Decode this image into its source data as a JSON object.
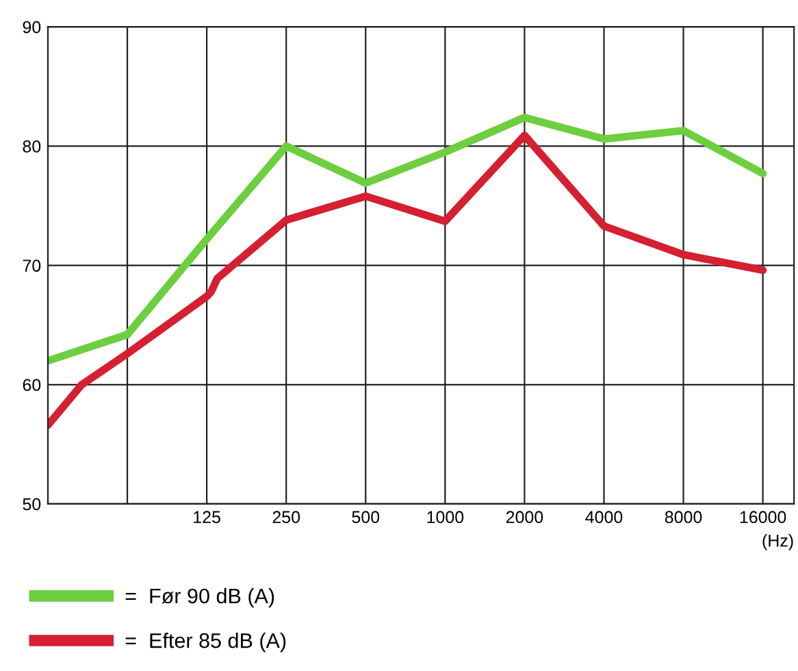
{
  "chart_data": {
    "type": "line",
    "xlabel": "(Hz)",
    "log": "x",
    "xlim": [
      31.25,
      21000
    ],
    "ylim": [
      50,
      90
    ],
    "xticks": [
      {
        "value": 31.25,
        "label": null
      },
      {
        "value": 62.5,
        "label": null
      },
      125,
      250,
      500,
      1000,
      2000,
      4000,
      8000,
      16000
    ],
    "yticks": [
      50,
      60,
      70,
      80,
      90
    ],
    "grid": true,
    "legend": "bottom",
    "marker": "none",
    "line_style": "solid",
    "series": [
      {
        "name": "=  Før 90 dB (A)",
        "color": "#6dce3f",
        "x": [
          31.25,
          62.5,
          125,
          250,
          500,
          1000,
          2000,
          4000,
          8000,
          16000
        ],
        "values": [
          62,
          64.2,
          72.2,
          80,
          76.9,
          79.5,
          82.4,
          80.6,
          81.3,
          77.7
        ]
      },
      {
        "name": "=  Efter 85 dB (A)",
        "color": "#d42031",
        "x": [
          31.25,
          42,
          62.5,
          125,
          130,
          137,
          250,
          500,
          1000,
          2000,
          4000,
          8000,
          16000
        ],
        "values": [
          56.6,
          60,
          62.6,
          67.4,
          67.8,
          68.9,
          73.8,
          75.8,
          73.7,
          80.9,
          73.3,
          70.9,
          69.6
        ]
      }
    ]
  }
}
